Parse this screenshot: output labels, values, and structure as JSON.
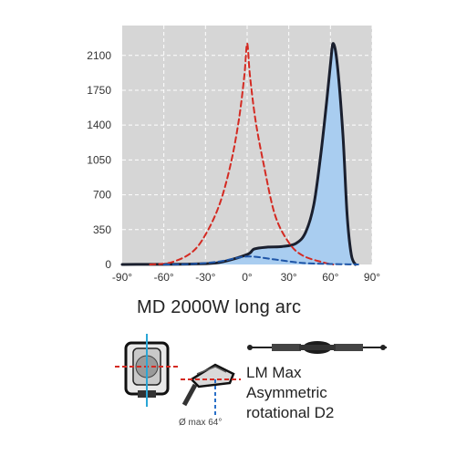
{
  "chart_data": {
    "type": "line",
    "title": "MD 2000W  long arc",
    "xlabel": "",
    "ylabel": "",
    "xlim": [
      -90,
      90
    ],
    "ylim": [
      0,
      2400
    ],
    "x_ticks": [
      -90,
      -60,
      -30,
      0,
      30,
      60,
      90
    ],
    "x_tick_labels": [
      "-90°",
      "-60°",
      "-30°",
      "0°",
      "30°",
      "60°",
      "90°"
    ],
    "y_ticks": [
      0,
      350,
      700,
      1050,
      1400,
      1750,
      2100
    ],
    "y_tick_labels": [
      "0",
      "350",
      "700",
      "1050",
      "1400",
      "1750",
      "2100"
    ],
    "grid": true,
    "series": [
      {
        "style": "solid-filled",
        "color": "#1a1f2e",
        "fill": "#a9cdf0",
        "x": [
          -90,
          -40,
          -20,
          0,
          5,
          15,
          25,
          35,
          42,
          48,
          53,
          57,
          60,
          62,
          65,
          69,
          72,
          75,
          78
        ],
        "y": [
          0,
          5,
          20,
          100,
          155,
          175,
          180,
          210,
          320,
          600,
          1100,
          1600,
          2010,
          2220,
          2000,
          1300,
          500,
          100,
          0
        ]
      },
      {
        "style": "dashed",
        "color": "#d42a22",
        "x": [
          -70,
          -55,
          -40,
          -30,
          -20,
          -12,
          -6,
          -2,
          0,
          2,
          6,
          12,
          20,
          30,
          40,
          55,
          62
        ],
        "y": [
          0,
          20,
          120,
          300,
          600,
          1000,
          1450,
          1900,
          2220,
          1900,
          1450,
          1000,
          500,
          220,
          90,
          20,
          0
        ]
      },
      {
        "style": "dashed",
        "color": "#1f56a8",
        "x": [
          -60,
          -40,
          -20,
          0,
          20,
          40,
          60,
          80
        ],
        "y": [
          0,
          5,
          30,
          80,
          50,
          15,
          5,
          0
        ]
      }
    ]
  },
  "lamp_labels": {
    "line1": "LM Max",
    "line2": "Asymmetric",
    "line3": "rotational D2",
    "note": "Ø max 64°"
  }
}
